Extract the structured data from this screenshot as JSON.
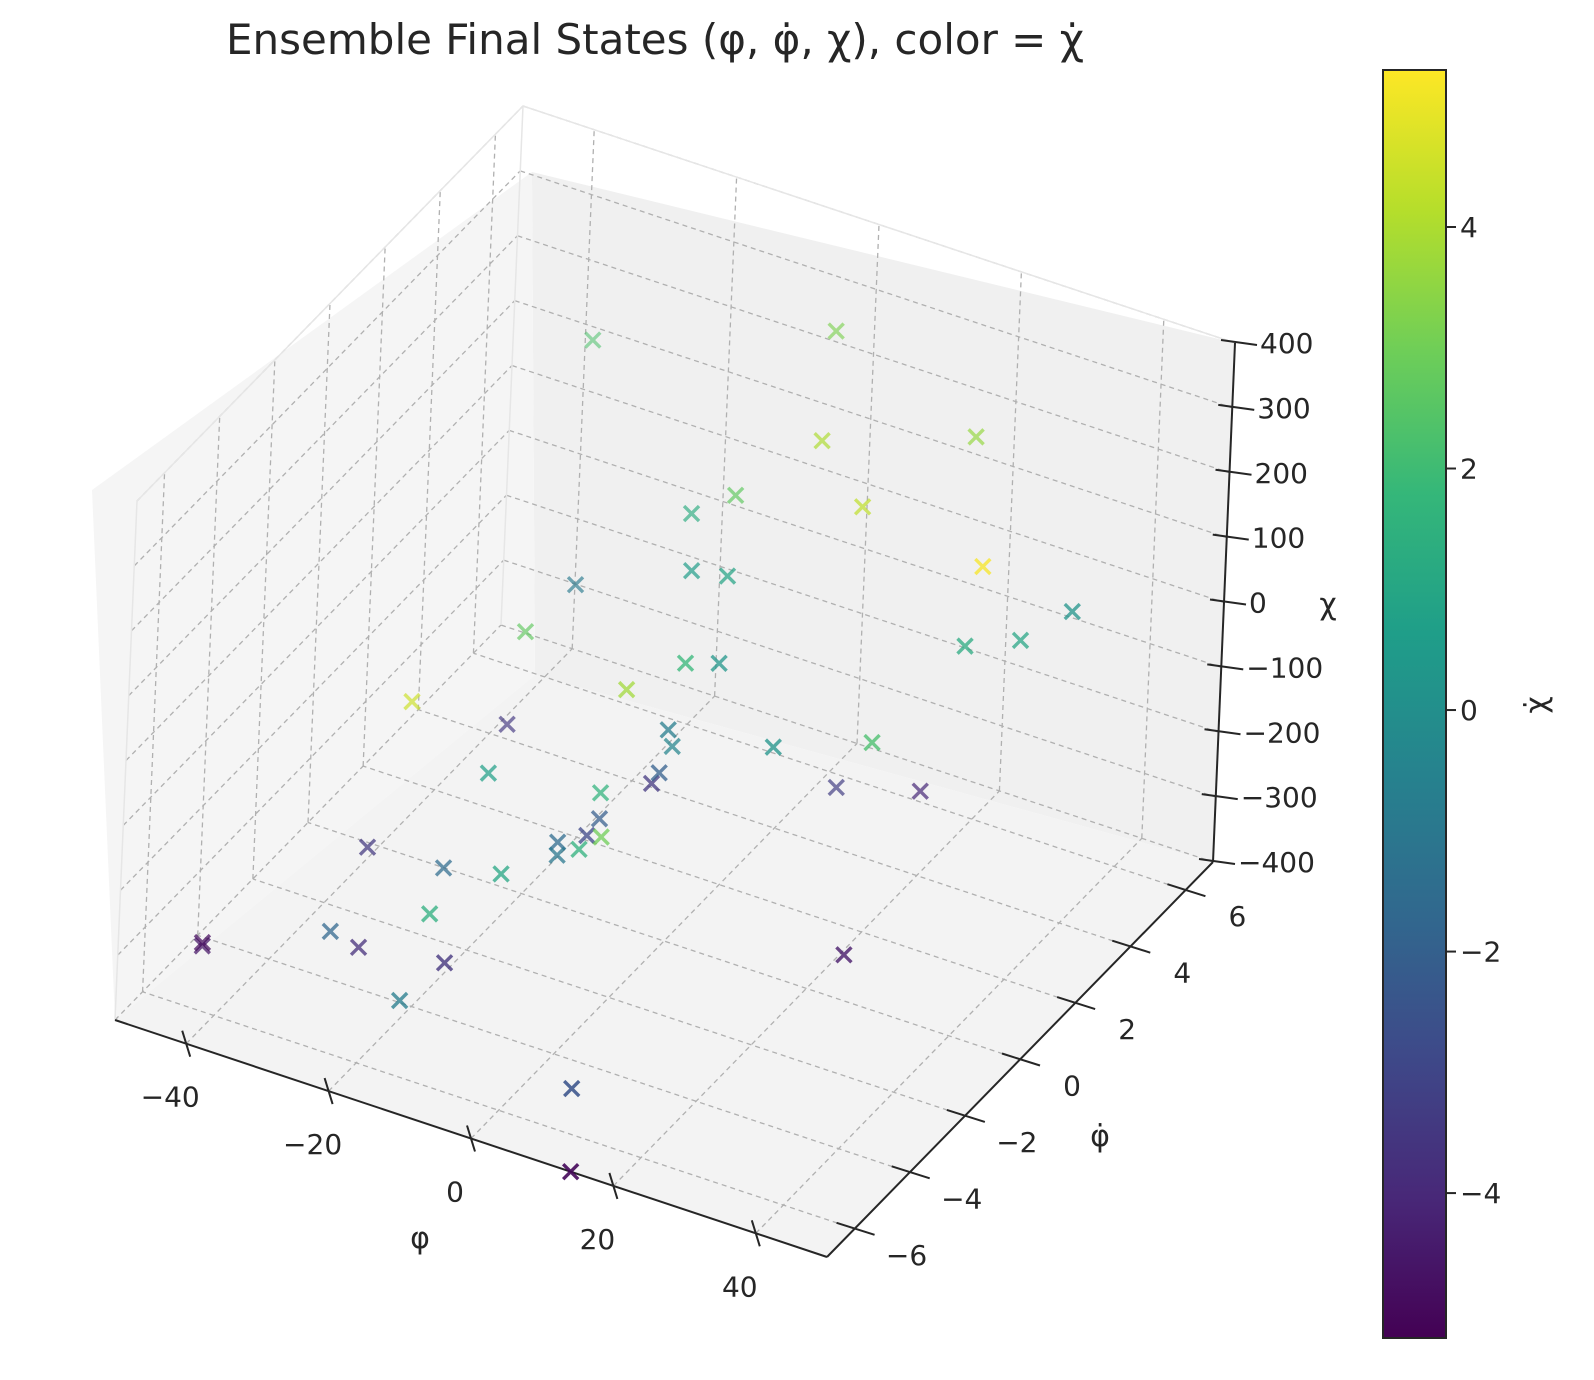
{
  "chart_data": {
    "type": "scatter",
    "projection": "3d",
    "title": "Ensemble Final States (φ, φ̇, χ), color = χ̇",
    "xlabel": "φ",
    "ylabel": "φ̇",
    "zlabel": "χ",
    "colorbar_label": "χ̇",
    "colormap": "viridis",
    "colormap_stops": [
      "#440154",
      "#482878",
      "#3e4989",
      "#31688e",
      "#26828e",
      "#1f9e89",
      "#35b779",
      "#6ece58",
      "#b5de2b",
      "#fde725"
    ],
    "marker": "x",
    "grid": true,
    "xlim": [
      -50,
      50
    ],
    "ylim": [
      -7,
      7
    ],
    "zlim": [
      -400,
      400
    ],
    "clim": [
      -5.2,
      5.3
    ],
    "xticks": [
      "−40",
      "−20",
      "0",
      "20",
      "40"
    ],
    "yticks": [
      "−6",
      "−4",
      "−2",
      "0",
      "2",
      "4",
      "6"
    ],
    "zticks": [
      "−400",
      "−300",
      "−200",
      "−100",
      "0",
      "100",
      "200",
      "300",
      "400"
    ],
    "cticks": [
      "−4",
      "−2",
      "0",
      "2",
      "4"
    ],
    "points": [
      {
        "x": 2,
        "y": 5,
        "z": 330,
        "c": 3.2
      },
      {
        "x": -28,
        "y": 4,
        "z": 250,
        "c": 2.3
      },
      {
        "x": 8,
        "y": 3,
        "z": 270,
        "c": 4.0
      },
      {
        "x": 22,
        "y": 5,
        "z": 240,
        "c": 3.6
      },
      {
        "x": 0,
        "y": 2,
        "z": 200,
        "c": 2.7
      },
      {
        "x": 14,
        "y": 3,
        "z": 190,
        "c": 4.3
      },
      {
        "x": -6,
        "y": 2,
        "z": 150,
        "c": 1.3
      },
      {
        "x": -2,
        "y": 1,
        "z": 120,
        "c": 0.6
      },
      {
        "x": 3,
        "y": 1,
        "z": 130,
        "c": 0.9
      },
      {
        "x": 31,
        "y": 3,
        "z": 160,
        "c": 5.2
      },
      {
        "x": -18,
        "y": 1,
        "z": 40,
        "c": -0.9
      },
      {
        "x": 5,
        "y": -1,
        "z": 90,
        "c": 1.8
      },
      {
        "x": -21,
        "y": 0,
        "z": 0,
        "c": 2.7
      },
      {
        "x": -3,
        "y": -1,
        "z": 20,
        "c": 3.8
      },
      {
        "x": 6,
        "y": 0,
        "z": 50,
        "c": 0.3
      },
      {
        "x": 40,
        "y": 4,
        "z": 80,
        "c": 0.2
      },
      {
        "x": 3,
        "y": -1,
        "z": -20,
        "c": -0.7
      },
      {
        "x": -29,
        "y": -2,
        "z": -50,
        "c": 4.5
      },
      {
        "x": 29,
        "y": 3,
        "z": 30,
        "c": 1.2
      },
      {
        "x": 33,
        "y": 4,
        "z": 10,
        "c": 1.0
      },
      {
        "x": 14,
        "y": 0,
        "z": -50,
        "c": 0.2
      },
      {
        "x": 24,
        "y": 1,
        "z": -50,
        "c": 2.2
      },
      {
        "x": -23,
        "y": 0,
        "z": -150,
        "c": -3.5
      },
      {
        "x": -18,
        "y": -2,
        "z": -120,
        "c": 0.7
      },
      {
        "x": 0,
        "y": 0,
        "z": -100,
        "c": -0.4
      },
      {
        "x": 2,
        "y": -1,
        "z": -90,
        "c": -2.0
      },
      {
        "x": 1,
        "y": -1,
        "z": -110,
        "c": -3.5
      },
      {
        "x": -6,
        "y": -1,
        "z": -150,
        "c": 1.6
      },
      {
        "x": -8,
        "y": -2,
        "z": -190,
        "c": -1.5
      },
      {
        "x": -4,
        "y": -2,
        "z": -165,
        "c": -2.9
      },
      {
        "x": -2,
        "y": -2,
        "z": -160,
        "c": 3.0
      },
      {
        "x": -6,
        "y": -1,
        "z": -190,
        "c": -2.1
      },
      {
        "x": -8,
        "y": -2,
        "z": -210,
        "c": -1.0
      },
      {
        "x": -5,
        "y": -2,
        "z": -190,
        "c": 1.5
      },
      {
        "x": -12,
        "y": -3,
        "z": -210,
        "c": 1.0
      },
      {
        "x": -27,
        "y": -4,
        "z": -180,
        "c": -3.5
      },
      {
        "x": -20,
        "y": -3,
        "z": -230,
        "c": -1.5
      },
      {
        "x": -18,
        "y": -4,
        "z": -250,
        "c": 1.4
      },
      {
        "x": -12,
        "y": -5,
        "z": -260,
        "c": -3.6
      },
      {
        "x": -28,
        "y": -5,
        "z": -270,
        "c": -1.7
      },
      {
        "x": -24,
        "y": -5,
        "z": -280,
        "c": -3.8
      },
      {
        "x": -18,
        "y": -5,
        "z": -340,
        "c": -0.7
      },
      {
        "x": 12,
        "y": 3,
        "z": -250,
        "c": -3.3
      },
      {
        "x": 20,
        "y": 4,
        "z": -270,
        "c": -4.0
      },
      {
        "x": 25,
        "y": 0,
        "z": -330,
        "c": -4.5
      },
      {
        "x": 10,
        "y": -6,
        "z": -330,
        "c": -2.5
      },
      {
        "x": 14,
        "y": -7,
        "z": -400,
        "c": -5.0
      },
      {
        "x": -42,
        "y": -6,
        "z": -300,
        "c": -4.6
      },
      {
        "x": -42,
        "y": -6,
        "z": -295,
        "c": -4.9
      }
    ]
  }
}
